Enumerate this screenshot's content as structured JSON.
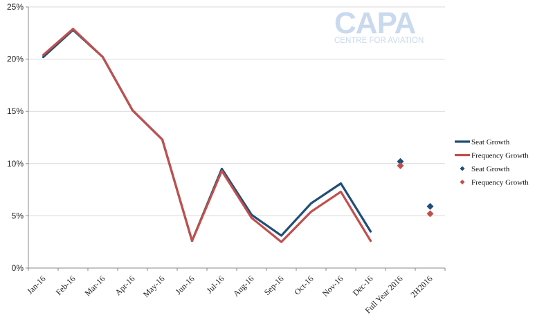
{
  "logo": {
    "name": "CAPA",
    "tagline": "CENTRE FOR AVIATION"
  },
  "chart_data": {
    "type": "line",
    "title": "",
    "xlabel": "",
    "ylabel": "",
    "ylim": [
      0,
      25
    ],
    "y_ticks": [
      "0%",
      "5%",
      "10%",
      "15%",
      "20%",
      "25%"
    ],
    "grid": true,
    "legend_position": "right",
    "categories": [
      "Jan-16",
      "Feb-16",
      "Mar-16",
      "Apr-16",
      "May-16",
      "Jun-16",
      "Jul-16",
      "Aug-16",
      "Sep-16",
      "Oct-16",
      "Nov-16",
      "Dec-16",
      "Full Year 2016",
      "2H2016"
    ],
    "series": [
      {
        "name": "Seat Growth",
        "kind": "line",
        "color": "#1f4e79",
        "values": [
          20.2,
          22.8,
          20.2,
          15.1,
          12.3,
          2.6,
          9.5,
          5.1,
          3.1,
          6.2,
          8.1,
          3.5,
          null,
          null
        ]
      },
      {
        "name": "Frequency Growth",
        "kind": "line",
        "color": "#c0504d",
        "values": [
          20.4,
          22.9,
          20.2,
          15.1,
          12.3,
          2.6,
          9.3,
          4.8,
          2.5,
          5.4,
          7.3,
          2.6,
          null,
          null
        ]
      },
      {
        "name": "Seat Growth",
        "kind": "marker",
        "color": "#1f4e79",
        "values": [
          null,
          null,
          null,
          null,
          null,
          null,
          null,
          null,
          null,
          null,
          null,
          null,
          10.2,
          5.9
        ]
      },
      {
        "name": "Frequency Growth",
        "kind": "marker",
        "color": "#c0504d",
        "values": [
          null,
          null,
          null,
          null,
          null,
          null,
          null,
          null,
          null,
          null,
          null,
          null,
          9.8,
          5.2
        ]
      }
    ]
  }
}
